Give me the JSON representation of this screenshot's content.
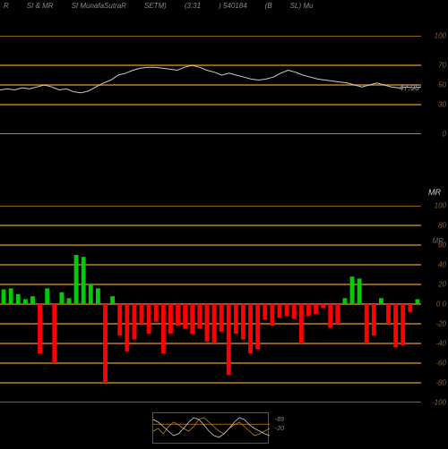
{
  "header": {
    "items": [
      "R",
      "SI & MR",
      "SI MunafaSutraR",
      "SETM)",
      "(3.31",
      ") 540184",
      "(B",
      "SL) Mu"
    ]
  },
  "top_chart": {
    "type": "line",
    "ylim": [
      0,
      100
    ],
    "gridlines": [
      0,
      30,
      50,
      70,
      100
    ],
    "gridline_color": "#c08020",
    "zero_line_color": "#c08020",
    "line_color": "#cccccc",
    "value_label": "47.95",
    "value_label_color": "#aaaaaa",
    "line_data": [
      45,
      46,
      45,
      47,
      46,
      48,
      50,
      48,
      45,
      46,
      43,
      42,
      44,
      48,
      52,
      55,
      60,
      62,
      65,
      67,
      68,
      68,
      67,
      66,
      65,
      68,
      70,
      68,
      65,
      63,
      60,
      62,
      60,
      58,
      56,
      55,
      56,
      58,
      62,
      65,
      63,
      60,
      58,
      56,
      55,
      54,
      53,
      52,
      50,
      48,
      50,
      52,
      50,
      48,
      47,
      48,
      47,
      48
    ]
  },
  "bottom_chart": {
    "type": "bar",
    "ylim": [
      -100,
      100
    ],
    "gridlines": [
      -100,
      -80,
      -60,
      -40,
      -20,
      0,
      20,
      40,
      60,
      80,
      100
    ],
    "gridline_color": "#c08020",
    "pos_color": "#00cc00",
    "neg_color": "#ff0000",
    "zero_label": "0  0",
    "bars": [
      15,
      16,
      10,
      5,
      8,
      -50,
      16,
      -60,
      12,
      6,
      50,
      48,
      20,
      16,
      -80,
      8,
      -32,
      -48,
      -36,
      -20,
      -30,
      -18,
      -50,
      -30,
      -22,
      -25,
      -30,
      -25,
      -38,
      -40,
      -28,
      -72,
      -30,
      -36,
      -50,
      -46,
      -16,
      -22,
      -14,
      -12,
      -15,
      -40,
      -12,
      -10,
      -4,
      -24,
      -20,
      6,
      28,
      26,
      -40,
      -32,
      6,
      -20,
      -44,
      -42,
      -8,
      5
    ]
  },
  "thumbnail": {
    "line1_color": "#c08020",
    "line2_color": "#cccccc",
    "label1": "-89",
    "label2": "-20",
    "line1_data": [
      15,
      18,
      12,
      20,
      25,
      22,
      18,
      15,
      20,
      28,
      30,
      25,
      20,
      15,
      12,
      18,
      22,
      25,
      20,
      15,
      10,
      12,
      15,
      18
    ],
    "line2_data": [
      28,
      25,
      20,
      15,
      10,
      12,
      18,
      25,
      30,
      28,
      22,
      15,
      10,
      8,
      12,
      18,
      25,
      30,
      28,
      22,
      18,
      15,
      12,
      10
    ]
  }
}
